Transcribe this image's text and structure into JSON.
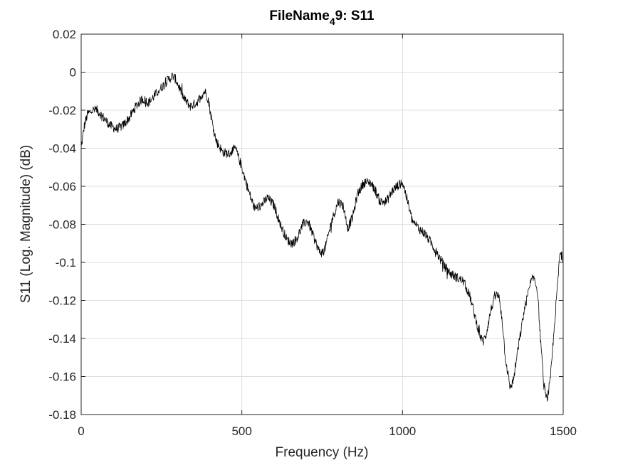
{
  "chart_data": {
    "type": "line",
    "title": "FileName",
    "title_subscript": "4",
    "title_suffix": "9: S11",
    "xlabel": "Frequency (Hz)",
    "ylabel": "S11 (Log. Magnitude) (dB)",
    "xlim": [
      0,
      1500
    ],
    "ylim": [
      -0.18,
      0.02
    ],
    "xticks": [
      0,
      500,
      1000,
      1500
    ],
    "xtick_labels": [
      "0",
      "500",
      "1000",
      "1500"
    ],
    "yticks": [
      0.02,
      0,
      -0.02,
      -0.04,
      -0.06,
      -0.08,
      -0.1,
      -0.12,
      -0.14,
      -0.16,
      -0.18
    ],
    "ytick_labels": [
      "0.02",
      "0",
      "-0.02",
      "-0.04",
      "-0.06",
      "-0.08",
      "-0.1",
      "-0.12",
      "-0.14",
      "-0.16",
      "-0.18"
    ],
    "grid": true,
    "legend": "none",
    "line_color": "#000000",
    "noise_amplitude": 0.0025,
    "series": [
      {
        "x": [
          0,
          10,
          20,
          35,
          50,
          70,
          90,
          110,
          130,
          150,
          170,
          190,
          210,
          230,
          250,
          270,
          285,
          295,
          305,
          320,
          340,
          360,
          375,
          385,
          395,
          405,
          420,
          440,
          460,
          480,
          500,
          520,
          540,
          560,
          580,
          600,
          620,
          640,
          655,
          670,
          690,
          705,
          720,
          740,
          750,
          760,
          780,
          800,
          815,
          830,
          845,
          860,
          880,
          900,
          915,
          930,
          950,
          970,
          990,
          1000,
          1010,
          1030,
          1050,
          1070,
          1090,
          1110,
          1130,
          1150,
          1170,
          1190,
          1210,
          1225,
          1240,
          1250,
          1260,
          1275,
          1290,
          1300,
          1310,
          1320,
          1335,
          1345,
          1360,
          1380,
          1400,
          1410,
          1420,
          1430,
          1440,
          1450,
          1460,
          1475,
          1490,
          1500
        ],
        "y": [
          -0.04,
          -0.028,
          -0.022,
          -0.02,
          -0.02,
          -0.024,
          -0.028,
          -0.03,
          -0.028,
          -0.024,
          -0.018,
          -0.014,
          -0.016,
          -0.012,
          -0.008,
          -0.004,
          -0.002,
          -0.004,
          -0.008,
          -0.014,
          -0.018,
          -0.016,
          -0.012,
          -0.01,
          -0.014,
          -0.024,
          -0.036,
          -0.042,
          -0.043,
          -0.04,
          -0.05,
          -0.062,
          -0.072,
          -0.07,
          -0.066,
          -0.07,
          -0.08,
          -0.088,
          -0.09,
          -0.088,
          -0.08,
          -0.078,
          -0.085,
          -0.094,
          -0.095,
          -0.092,
          -0.078,
          -0.068,
          -0.07,
          -0.082,
          -0.076,
          -0.064,
          -0.058,
          -0.058,
          -0.062,
          -0.068,
          -0.068,
          -0.062,
          -0.059,
          -0.058,
          -0.064,
          -0.078,
          -0.082,
          -0.085,
          -0.09,
          -0.096,
          -0.102,
          -0.106,
          -0.108,
          -0.11,
          -0.118,
          -0.128,
          -0.138,
          -0.142,
          -0.138,
          -0.125,
          -0.117,
          -0.118,
          -0.13,
          -0.15,
          -0.166,
          -0.162,
          -0.145,
          -0.124,
          -0.11,
          -0.108,
          -0.115,
          -0.142,
          -0.165,
          -0.172,
          -0.162,
          -0.128,
          -0.095,
          -0.098
        ]
      }
    ]
  }
}
